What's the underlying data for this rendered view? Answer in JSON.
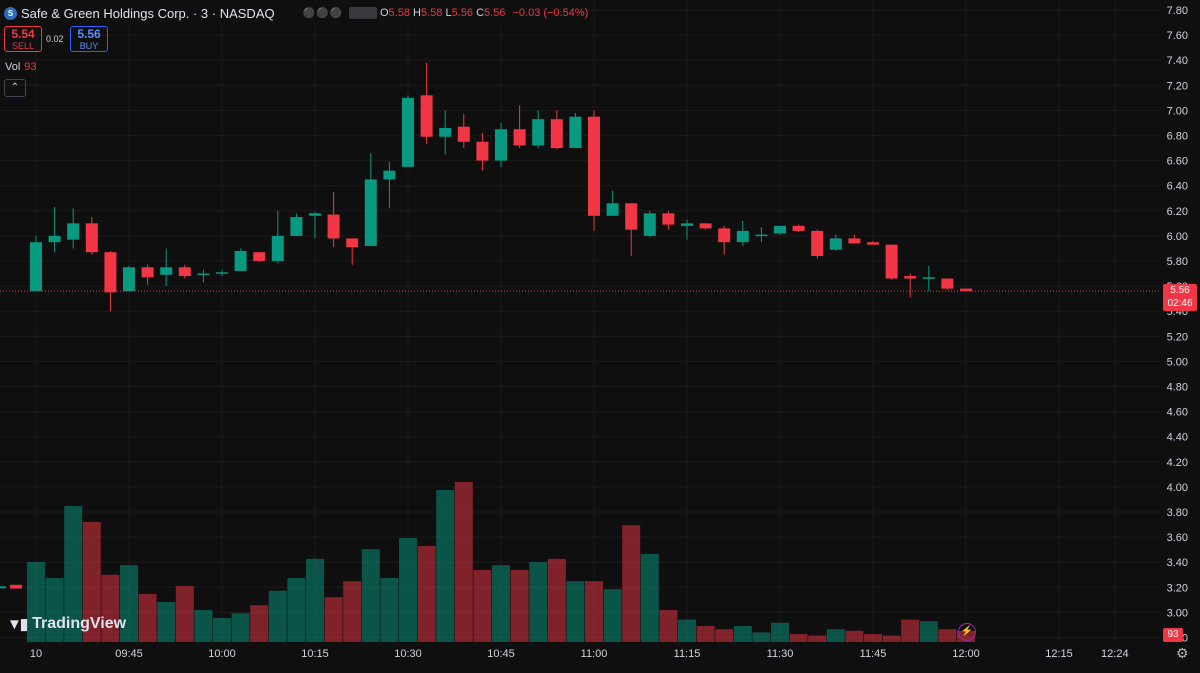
{
  "header": {
    "logo_icon": "safe-green-logo-icon",
    "symbol": "Safe & Green Holdings Corp. · 3 · NASDAQ",
    "o_key": "O",
    "o_val": "5.58",
    "h_key": "H",
    "h_val": "5.58",
    "l_key": "L",
    "l_val": "5.56",
    "c_key": "C",
    "c_val": "5.56",
    "change": "−0.03 (−0.54%)"
  },
  "trade": {
    "sell_price": "5.54",
    "sell_label": "SELL",
    "spread": "0.02",
    "buy_price": "5.56",
    "buy_label": "BUY"
  },
  "volume_legend": {
    "label": "Vol",
    "value": "93"
  },
  "current_price": {
    "price": "5.56",
    "countdown": "02:46"
  },
  "volume_tag": "93",
  "branding": {
    "name": "TradingView"
  },
  "colors": {
    "up": "#089981",
    "down": "#f23645",
    "background": "#0f0f0f"
  },
  "chart_data": {
    "type": "candlestick",
    "price_ticks": [
      "7.80",
      "7.60",
      "7.40",
      "7.20",
      "7.00",
      "6.80",
      "6.60",
      "6.40",
      "6.20",
      "6.00",
      "5.80",
      "5.60",
      "5.40",
      "5.20",
      "5.00",
      "4.80",
      "4.60",
      "4.40",
      "4.20",
      "4.00",
      "3.80",
      "3.60",
      "3.40",
      "3.20",
      "3.00",
      "2.80"
    ],
    "time_ticks": [
      "10",
      "09:45",
      "10:00",
      "10:15",
      "10:30",
      "10:45",
      "11:00",
      "11:15",
      "11:30",
      "11:45",
      "12:00",
      "12:15",
      "12:24"
    ],
    "time_tick_minutes": [
      570,
      585,
      600,
      615,
      630,
      645,
      660,
      675,
      690,
      705,
      720,
      735,
      744
    ],
    "ylim": [
      2.7,
      7.9
    ],
    "current_price": 5.56,
    "candles": [
      {
        "t": 570,
        "o": 5.56,
        "h": 6.0,
        "l": 5.56,
        "c": 5.95
      },
      {
        "t": 573,
        "o": 5.95,
        "h": 6.23,
        "l": 5.87,
        "c": 6.0
      },
      {
        "t": 576,
        "o": 5.97,
        "h": 6.22,
        "l": 5.9,
        "c": 6.1
      },
      {
        "t": 579,
        "o": 6.1,
        "h": 6.15,
        "l": 5.85,
        "c": 5.87
      },
      {
        "t": 582,
        "o": 5.87,
        "h": 5.88,
        "l": 5.4,
        "c": 5.55
      },
      {
        "t": 585,
        "o": 5.56,
        "h": 5.76,
        "l": 5.56,
        "c": 5.75
      },
      {
        "t": 588,
        "o": 5.75,
        "h": 5.77,
        "l": 5.61,
        "c": 5.67
      },
      {
        "t": 591,
        "o": 5.69,
        "h": 5.9,
        "l": 5.6,
        "c": 5.75
      },
      {
        "t": 594,
        "o": 5.75,
        "h": 5.77,
        "l": 5.66,
        "c": 5.68
      },
      {
        "t": 597,
        "o": 5.69,
        "h": 5.73,
        "l": 5.63,
        "c": 5.7
      },
      {
        "t": 600,
        "o": 5.7,
        "h": 5.73,
        "l": 5.68,
        "c": 5.71
      },
      {
        "t": 603,
        "o": 5.72,
        "h": 5.9,
        "l": 5.72,
        "c": 5.88
      },
      {
        "t": 606,
        "o": 5.87,
        "h": 5.87,
        "l": 5.79,
        "c": 5.8
      },
      {
        "t": 609,
        "o": 5.8,
        "h": 6.2,
        "l": 5.78,
        "c": 6.0
      },
      {
        "t": 612,
        "o": 6.0,
        "h": 6.18,
        "l": 6.0,
        "c": 6.15
      },
      {
        "t": 615,
        "o": 6.16,
        "h": 6.19,
        "l": 5.98,
        "c": 6.18
      },
      {
        "t": 618,
        "o": 6.17,
        "h": 6.35,
        "l": 5.91,
        "c": 5.98
      },
      {
        "t": 621,
        "o": 5.98,
        "h": 5.98,
        "l": 5.77,
        "c": 5.91
      },
      {
        "t": 624,
        "o": 5.92,
        "h": 6.66,
        "l": 5.92,
        "c": 6.45
      },
      {
        "t": 627,
        "o": 6.45,
        "h": 6.59,
        "l": 6.22,
        "c": 6.52
      },
      {
        "t": 630,
        "o": 6.55,
        "h": 7.12,
        "l": 6.55,
        "c": 7.1
      },
      {
        "t": 633,
        "o": 7.12,
        "h": 7.38,
        "l": 6.73,
        "c": 6.79
      },
      {
        "t": 636,
        "o": 6.79,
        "h": 7.0,
        "l": 6.65,
        "c": 6.86
      },
      {
        "t": 639,
        "o": 6.87,
        "h": 6.97,
        "l": 6.7,
        "c": 6.75
      },
      {
        "t": 642,
        "o": 6.75,
        "h": 6.82,
        "l": 6.52,
        "c": 6.6
      },
      {
        "t": 645,
        "o": 6.6,
        "h": 6.9,
        "l": 6.55,
        "c": 6.85
      },
      {
        "t": 648,
        "o": 6.85,
        "h": 7.04,
        "l": 6.7,
        "c": 6.72
      },
      {
        "t": 651,
        "o": 6.72,
        "h": 7.0,
        "l": 6.7,
        "c": 6.93
      },
      {
        "t": 654,
        "o": 6.93,
        "h": 7.0,
        "l": 6.69,
        "c": 6.7
      },
      {
        "t": 657,
        "o": 6.7,
        "h": 6.98,
        "l": 6.7,
        "c": 6.95
      },
      {
        "t": 660,
        "o": 6.95,
        "h": 7.0,
        "l": 6.04,
        "c": 6.16
      },
      {
        "t": 663,
        "o": 6.16,
        "h": 6.36,
        "l": 6.16,
        "c": 6.26
      },
      {
        "t": 666,
        "o": 6.26,
        "h": 6.26,
        "l": 5.84,
        "c": 6.05
      },
      {
        "t": 669,
        "o": 6.0,
        "h": 6.2,
        "l": 5.99,
        "c": 6.18
      },
      {
        "t": 672,
        "o": 6.18,
        "h": 6.2,
        "l": 6.05,
        "c": 6.09
      },
      {
        "t": 675,
        "o": 6.08,
        "h": 6.13,
        "l": 5.97,
        "c": 6.1
      },
      {
        "t": 678,
        "o": 6.1,
        "h": 6.1,
        "l": 6.05,
        "c": 6.06
      },
      {
        "t": 681,
        "o": 6.06,
        "h": 6.08,
        "l": 5.85,
        "c": 5.95
      },
      {
        "t": 684,
        "o": 5.95,
        "h": 6.12,
        "l": 5.92,
        "c": 6.04
      },
      {
        "t": 687,
        "o": 6.0,
        "h": 6.07,
        "l": 5.95,
        "c": 6.01
      },
      {
        "t": 690,
        "o": 6.02,
        "h": 6.08,
        "l": 6.01,
        "c": 6.08
      },
      {
        "t": 693,
        "o": 6.08,
        "h": 6.09,
        "l": 6.03,
        "c": 6.04
      },
      {
        "t": 696,
        "o": 6.04,
        "h": 6.05,
        "l": 5.82,
        "c": 5.84
      },
      {
        "t": 699,
        "o": 5.89,
        "h": 6.01,
        "l": 5.88,
        "c": 5.98
      },
      {
        "t": 702,
        "o": 5.98,
        "h": 6.01,
        "l": 5.94,
        "c": 5.94
      },
      {
        "t": 705,
        "o": 5.95,
        "h": 5.96,
        "l": 5.93,
        "c": 5.93
      },
      {
        "t": 708,
        "o": 5.93,
        "h": 5.93,
        "l": 5.65,
        "c": 5.66
      },
      {
        "t": 711,
        "o": 5.68,
        "h": 5.7,
        "l": 5.51,
        "c": 5.66
      },
      {
        "t": 714,
        "o": 5.66,
        "h": 5.76,
        "l": 5.56,
        "c": 5.67
      },
      {
        "t": 717,
        "o": 5.66,
        "h": 5.66,
        "l": 5.57,
        "c": 5.58
      },
      {
        "t": 720,
        "o": 5.58,
        "h": 5.58,
        "l": 5.56,
        "c": 5.56
      }
    ],
    "volume_scale_note": "",
    "volumes": [
      0.5,
      0.4,
      0.85,
      0.75,
      0.42,
      0.48,
      0.3,
      0.25,
      0.35,
      0.2,
      0.15,
      0.18,
      0.23,
      0.32,
      0.4,
      0.52,
      0.28,
      0.38,
      0.58,
      0.4,
      0.65,
      0.6,
      0.95,
      1.0,
      0.45,
      0.48,
      0.45,
      0.5,
      0.52,
      0.38,
      0.38,
      0.33,
      0.73,
      0.55,
      0.2,
      0.14,
      0.1,
      0.08,
      0.1,
      0.06,
      0.12,
      0.05,
      0.04,
      0.08,
      0.07,
      0.05,
      0.04,
      0.14,
      0.13,
      0.08,
      0.07
    ]
  }
}
